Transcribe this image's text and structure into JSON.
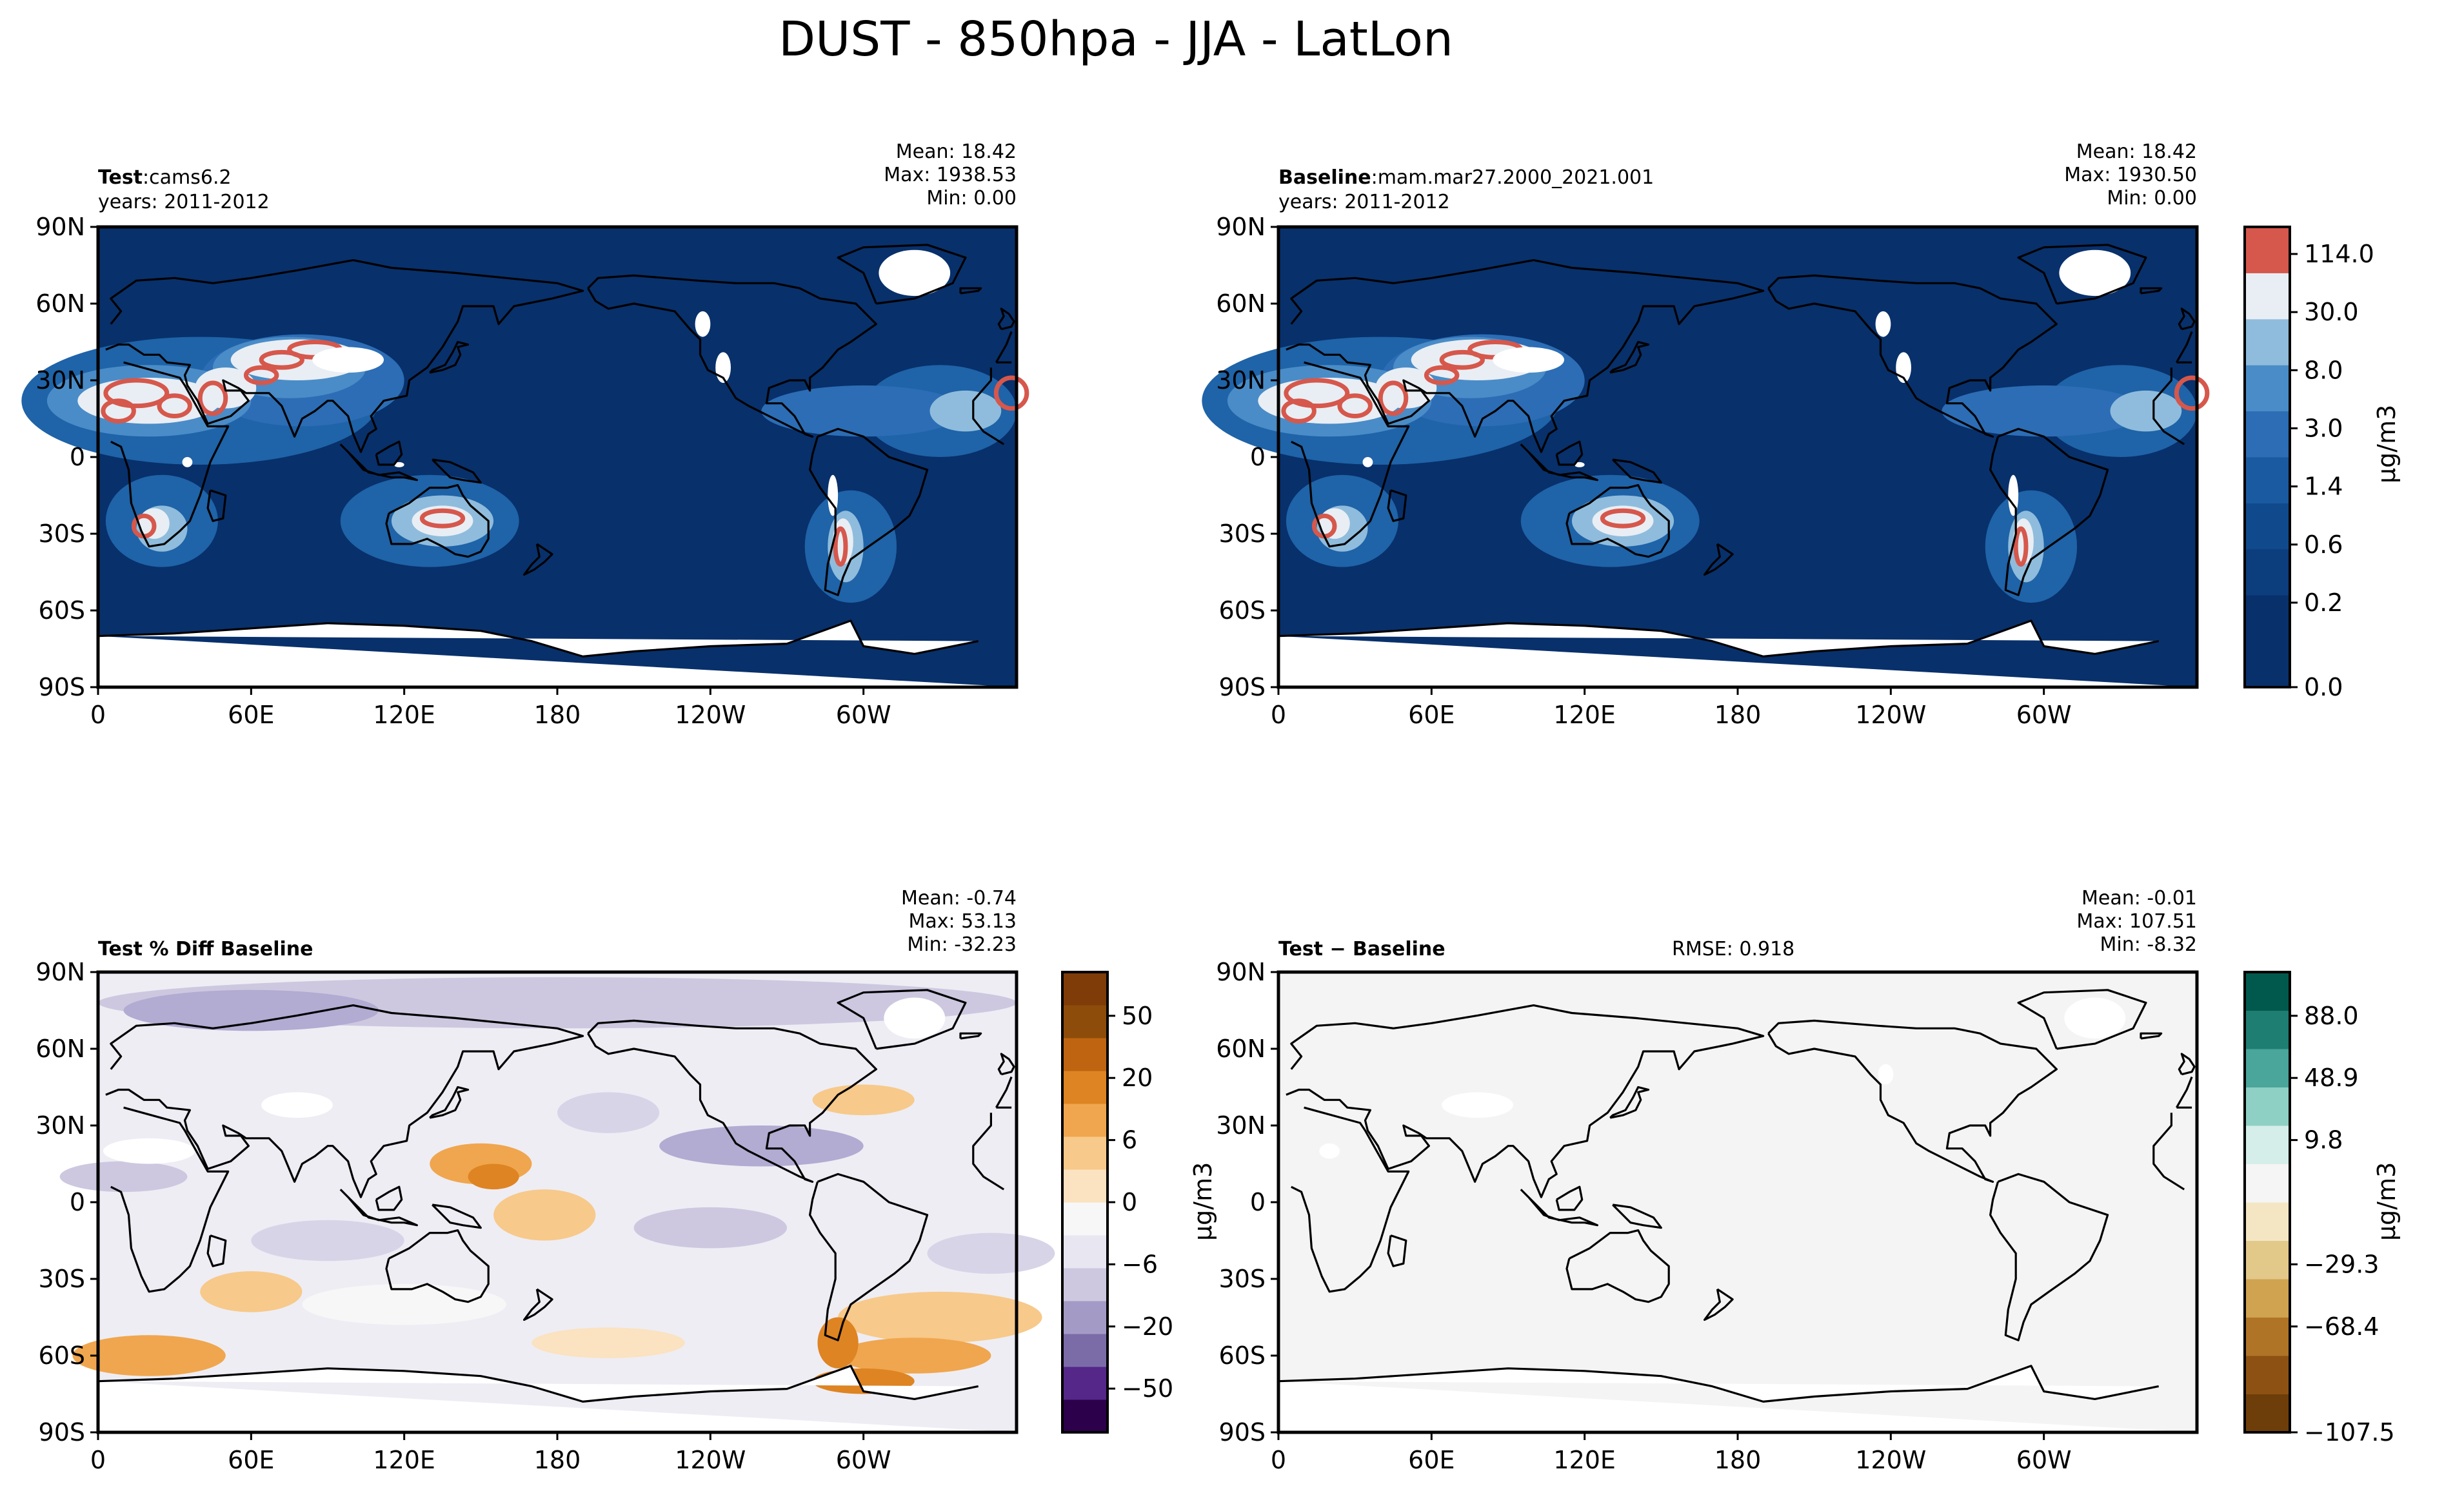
{
  "title": "DUST - 850hpa - JJA - LatLon",
  "panels": {
    "test": {
      "label": "Test",
      "sep": ":",
      "name": "cams6.2",
      "years": "years: 2011-2012",
      "mean": "Mean: 18.42",
      "max": "Max: 1938.53",
      "min": "Min:  0.00"
    },
    "baseline": {
      "label": "Baseline",
      "sep": ":",
      "name": "mam.mar27.2000_2021.001",
      "years": "years: 2011-2012",
      "mean": "Mean: 18.42",
      "max": "Max: 1930.50",
      "min": "Min:  0.00"
    },
    "pctdiff": {
      "label": "Test % Diff Baseline",
      "mean": "Mean: -0.74",
      "max": "Max: 53.13",
      "min": "Min: -32.23"
    },
    "diff": {
      "label": "Test − Baseline",
      "rmse": "RMSE: 0.918",
      "mean": "Mean: -0.01",
      "max": "Max: 107.51",
      "min": "Min: -8.32"
    }
  },
  "axes": {
    "lat_ticks": [
      "90N",
      "60N",
      "30N",
      "0",
      "30S",
      "60S",
      "90S"
    ],
    "lon_ticks": [
      "0",
      "60E",
      "120E",
      "180",
      "120W",
      "60W"
    ]
  },
  "colorbars": {
    "field": {
      "unit": "μg/m3",
      "labels": [
        "114.0",
        "30.0",
        "8.0",
        "3.0",
        "1.4",
        "0.6",
        "0.2",
        "0.0"
      ],
      "colors": [
        "#08306b",
        "#08306b",
        "#0c3d7c",
        "#104a8c",
        "#1a5aa0",
        "#2c6db5",
        "#4a8cc7",
        "#8fbcdc",
        "#e8eef4",
        "#d6574b"
      ]
    },
    "pctdiff": {
      "labels": [
        "50",
        "20",
        "6",
        "0",
        "−6",
        "−20",
        "−50"
      ],
      "colors": [
        "#2d004b",
        "#542788",
        "#7b6ca8",
        "#a49ac6",
        "#cdc8e0",
        "#e8e6f0",
        "#f7f7f7",
        "#fbe2c0",
        "#f7c98a",
        "#f0a64e",
        "#de8422",
        "#bf6410",
        "#8d4c0a",
        "#7f3b08"
      ]
    },
    "diff": {
      "unit": "μg/m3",
      "labels": [
        "88.0",
        "48.9",
        "9.8",
        "−29.3",
        "−68.4",
        "−107.5"
      ],
      "colors": [
        "#6d3e09",
        "#8d5213",
        "#b07427",
        "#cfa34f",
        "#e2c98a",
        "#f4e6c3",
        "#f5f5f5",
        "#d5eeea",
        "#8fd0c4",
        "#4aa59a",
        "#1e7e72",
        "#00594c"
      ]
    }
  },
  "chart_data": [
    {
      "type": "heatmap",
      "title": "Test: cams6.2",
      "xlabel": "",
      "ylabel": "",
      "x_ticks": [
        "0",
        "60E",
        "120E",
        "180",
        "120W",
        "60W"
      ],
      "y_ticks": [
        "90N",
        "60N",
        "30N",
        "0",
        "30S",
        "60S",
        "90S"
      ],
      "mean": 18.42,
      "max": 1938.53,
      "min": 0.0,
      "contour_levels": [
        0.0,
        0.2,
        0.6,
        1.4,
        3.0,
        8.0,
        30.0,
        114.0
      ],
      "unit": "μg/m3"
    },
    {
      "type": "heatmap",
      "title": "Baseline: mam.mar27.2000_2021.001",
      "x_ticks": [
        "0",
        "60E",
        "120E",
        "180",
        "120W",
        "60W"
      ],
      "y_ticks": [
        "90N",
        "60N",
        "30N",
        "0",
        "30S",
        "60S",
        "90S"
      ],
      "mean": 18.42,
      "max": 1930.5,
      "min": 0.0,
      "contour_levels": [
        0.0,
        0.2,
        0.6,
        1.4,
        3.0,
        8.0,
        30.0,
        114.0
      ],
      "unit": "μg/m3"
    },
    {
      "type": "heatmap",
      "title": "Test % Diff Baseline",
      "x_ticks": [
        "0",
        "60E",
        "120E",
        "180",
        "120W",
        "60W"
      ],
      "y_ticks": [
        "90N",
        "60N",
        "30N",
        "0",
        "30S",
        "60S",
        "90S"
      ],
      "mean": -0.74,
      "max": 53.13,
      "min": -32.23,
      "colorbar_ticks": [
        50,
        20,
        6,
        0,
        -6,
        -20,
        -50
      ]
    },
    {
      "type": "heatmap",
      "title": "Test − Baseline",
      "rmse": 0.918,
      "x_ticks": [
        "0",
        "60E",
        "120E",
        "180",
        "120W",
        "60W"
      ],
      "y_ticks": [
        "90N",
        "60N",
        "30N",
        "0",
        "30S",
        "60S",
        "90S"
      ],
      "mean": -0.01,
      "max": 107.51,
      "min": -8.32,
      "colorbar_ticks": [
        88.0,
        48.9,
        9.8,
        -29.3,
        -68.4,
        -107.5
      ],
      "unit": "μg/m3"
    }
  ]
}
